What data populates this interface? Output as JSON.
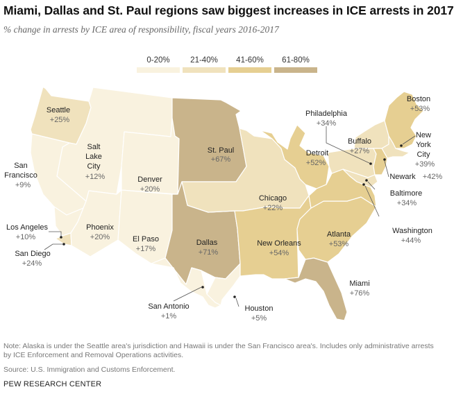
{
  "title": "Miami, Dallas and St. Paul regions saw biggest increases in ICE arrests in 2017",
  "subtitle": "% change in arrests by ICE area of responsibility, fiscal years 2016-2017",
  "legend": [
    {
      "label": "0-20%",
      "color": "#f9f2df"
    },
    {
      "label": "21-40%",
      "color": "#f0e2bd"
    },
    {
      "label": "41-60%",
      "color": "#e6cf92"
    },
    {
      "label": "61-80%",
      "color": "#c9b48b"
    }
  ],
  "regions": [
    {
      "name": "Seattle",
      "value": "+25%",
      "pct": 25
    },
    {
      "name": "Salt Lake City",
      "value": "+12%",
      "pct": 12
    },
    {
      "name": "San Francisco",
      "value": "+9%",
      "pct": 9
    },
    {
      "name": "Denver",
      "value": "+20%",
      "pct": 20
    },
    {
      "name": "St. Paul",
      "value": "+67%",
      "pct": 67
    },
    {
      "name": "Chicago",
      "value": "+22%",
      "pct": 22
    },
    {
      "name": "Detroit",
      "value": "+52%",
      "pct": 52
    },
    {
      "name": "Buffalo",
      "value": "+27%",
      "pct": 27
    },
    {
      "name": "Philadelphia",
      "value": "+34%",
      "pct": 34
    },
    {
      "name": "Boston",
      "value": "+53%",
      "pct": 53
    },
    {
      "name": "New York City",
      "value": "+39%",
      "pct": 39
    },
    {
      "name": "Newark",
      "value": "+42%",
      "pct": 42
    },
    {
      "name": "Baltimore",
      "value": "+34%",
      "pct": 34
    },
    {
      "name": "Washington",
      "value": "+44%",
      "pct": 44
    },
    {
      "name": "Los Angeles",
      "value": "+10%",
      "pct": 10
    },
    {
      "name": "San Diego",
      "value": "+24%",
      "pct": 24
    },
    {
      "name": "Phoenix",
      "value": "+20%",
      "pct": 20
    },
    {
      "name": "El Paso",
      "value": "+17%",
      "pct": 17
    },
    {
      "name": "Dallas",
      "value": "+71%",
      "pct": 71
    },
    {
      "name": "New Orleans",
      "value": "+54%",
      "pct": 54
    },
    {
      "name": "Atlanta",
      "value": "+53%",
      "pct": 53
    },
    {
      "name": "Miami",
      "value": "+76%",
      "pct": 76
    },
    {
      "name": "San Antonio",
      "value": "+1%",
      "pct": 1
    },
    {
      "name": "Houston",
      "value": "+5%",
      "pct": 5
    }
  ],
  "note": "Note: Alaska is under the Seattle area's jurisdiction and Hawaii is under the San Francisco area's. Includes only administrative arrests by ICE Enforcement and Removal Operations activities.",
  "source": "Source: U.S. Immigration and Customs Enforcement.",
  "footer": "PEW RESEARCH CENTER"
}
